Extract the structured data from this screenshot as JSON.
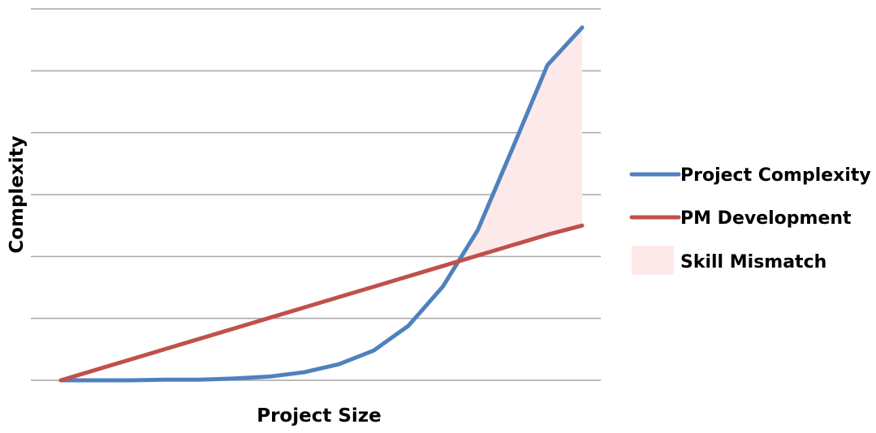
{
  "chart_data": {
    "type": "line",
    "title": "",
    "xlabel": "Project Size",
    "ylabel": "Complexity",
    "grid": true,
    "legend_position": "right",
    "x": [
      0,
      1,
      2,
      3,
      4,
      5,
      6,
      7,
      8,
      9,
      10,
      11,
      12,
      13,
      14,
      15
    ],
    "ylim": [
      0,
      6
    ],
    "gridline_values": [
      0,
      1,
      2,
      3,
      4,
      5,
      6
    ],
    "series": [
      {
        "name": "Project Complexity",
        "color": "#4f81bd",
        "values": [
          0,
          0,
          0,
          0.01,
          0.01,
          0.03,
          0.06,
          0.13,
          0.26,
          0.48,
          0.88,
          1.52,
          2.43,
          3.75,
          5.09,
          5.7
        ]
      },
      {
        "name": "PM Development",
        "color": "#c0504d",
        "values": [
          0,
          0.168,
          0.336,
          0.504,
          0.672,
          0.84,
          1.008,
          1.176,
          1.344,
          1.512,
          1.68,
          1.848,
          2.016,
          2.184,
          2.352,
          2.5
        ]
      }
    ],
    "shaded_region": {
      "name": "Skill Mismatch",
      "color": "#fde9e9",
      "description_of_bounds": "between Project Complexity and PM Development where Project Complexity is higher"
    }
  }
}
